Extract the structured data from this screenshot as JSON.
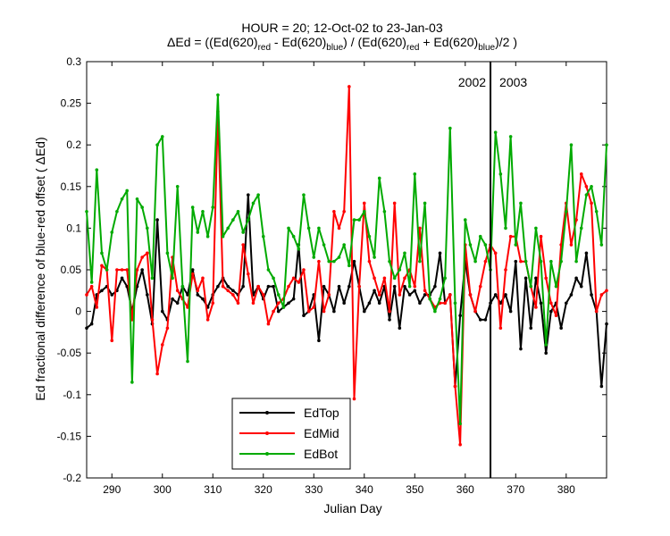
{
  "figure": {
    "title_line1": "HOUR = 20; 12-Oct-02 to 23-Jan-03",
    "title_line2": {
      "p1": "ΔEd = ((Ed(620)",
      "s1": "red",
      "p2": " - Ed(620)",
      "s2": "blue",
      "p3": ") / (Ed(620)",
      "s3": "red",
      "p4": " + Ed(620)",
      "s4": "blue",
      "p5": ")/2  )"
    },
    "xlabel": "Julian Day",
    "ylabel": "Ed fractional difference of blue-red offset ( ΔEd)",
    "annotation_2002": "2002",
    "annotation_2003": "2003"
  },
  "chart_data": {
    "type": "line",
    "xlim": [
      285,
      388
    ],
    "ylim": [
      -0.2,
      0.3
    ],
    "x_ticks": [
      290,
      300,
      310,
      320,
      330,
      340,
      350,
      360,
      370,
      380
    ],
    "y_ticks": [
      -0.2,
      -0.15,
      -0.1,
      -0.05,
      0,
      0.05,
      0.1,
      0.15,
      0.2,
      0.25,
      0.3
    ],
    "y_tick_labels": [
      "-0.2",
      "-0.15",
      "-0.1",
      "-0.05",
      "0",
      "0.05",
      "0.1",
      "0.15",
      "0.2",
      "0.25",
      "0.3"
    ],
    "vertical_line_x": 365,
    "grid": false,
    "legend_position": "bottom-center",
    "series": [
      {
        "name": "EdTop",
        "color": "#000000",
        "points": [
          [
            285,
            -0.02
          ],
          [
            286,
            -0.015
          ],
          [
            287,
            0.02
          ],
          [
            288,
            0.025
          ],
          [
            289,
            0.03
          ],
          [
            290,
            0.02
          ],
          [
            291,
            0.025
          ],
          [
            292,
            0.04
          ],
          [
            293,
            0.03
          ],
          [
            294,
            0.0
          ],
          [
            295,
            0.03
          ],
          [
            296,
            0.05
          ],
          [
            297,
            0.02
          ],
          [
            298,
            -0.015
          ],
          [
            299,
            0.11
          ],
          [
            300,
            0.0
          ],
          [
            301,
            -0.01
          ],
          [
            302,
            0.015
          ],
          [
            303,
            0.01
          ],
          [
            304,
            0.03
          ],
          [
            305,
            0.02
          ],
          [
            306,
            0.05
          ],
          [
            307,
            0.02
          ],
          [
            308,
            0.015
          ],
          [
            309,
            0.005
          ],
          [
            310,
            0.02
          ],
          [
            311,
            0.03
          ],
          [
            312,
            0.04
          ],
          [
            313,
            0.03
          ],
          [
            314,
            0.025
          ],
          [
            315,
            0.02
          ],
          [
            316,
            0.03
          ],
          [
            317,
            0.14
          ],
          [
            318,
            0.02
          ],
          [
            319,
            0.03
          ],
          [
            320,
            0.015
          ],
          [
            321,
            0.03
          ],
          [
            322,
            0.03
          ],
          [
            323,
            0.0
          ],
          [
            324,
            0.005
          ],
          [
            325,
            0.01
          ],
          [
            326,
            0.015
          ],
          [
            327,
            0.08
          ],
          [
            328,
            -0.005
          ],
          [
            329,
            0.0
          ],
          [
            330,
            0.02
          ],
          [
            331,
            -0.035
          ],
          [
            332,
            0.03
          ],
          [
            333,
            0.02
          ],
          [
            334,
            0.0
          ],
          [
            335,
            0.03
          ],
          [
            336,
            0.01
          ],
          [
            337,
            0.03
          ],
          [
            338,
            0.06
          ],
          [
            339,
            0.03
          ],
          [
            340,
            0.0
          ],
          [
            341,
            0.01
          ],
          [
            342,
            0.025
          ],
          [
            343,
            0.01
          ],
          [
            344,
            0.03
          ],
          [
            345,
            -0.01
          ],
          [
            346,
            0.03
          ],
          [
            347,
            -0.02
          ],
          [
            348,
            0.03
          ],
          [
            349,
            0.02
          ],
          [
            350,
            0.025
          ],
          [
            351,
            0.01
          ],
          [
            352,
            0.02
          ],
          [
            353,
            0.02
          ],
          [
            354,
            0.03
          ],
          [
            355,
            0.07
          ],
          [
            356,
            0.01
          ],
          [
            357,
            0.02
          ],
          [
            358,
            -0.09
          ],
          [
            359,
            -0.005
          ],
          [
            360,
            0.06
          ],
          [
            361,
            0.02
          ],
          [
            362,
            0.0
          ],
          [
            363,
            -0.01
          ],
          [
            364,
            -0.01
          ],
          [
            365,
            0.01
          ],
          [
            366,
            0.02
          ],
          [
            367,
            0.01
          ],
          [
            368,
            0.02
          ],
          [
            369,
            0.0
          ],
          [
            370,
            0.06
          ],
          [
            371,
            -0.045
          ],
          [
            372,
            0.04
          ],
          [
            373,
            -0.02
          ],
          [
            374,
            0.04
          ],
          [
            375,
            0.01
          ],
          [
            376,
            -0.05
          ],
          [
            377,
            0.0
          ],
          [
            378,
            0.01
          ],
          [
            379,
            -0.02
          ],
          [
            380,
            0.01
          ],
          [
            381,
            0.02
          ],
          [
            382,
            0.04
          ],
          [
            383,
            0.03
          ],
          [
            384,
            0.07
          ],
          [
            385,
            0.02
          ],
          [
            386,
            0.0
          ],
          [
            387,
            -0.09
          ],
          [
            388,
            -0.015
          ]
        ]
      },
      {
        "name": "EdMid",
        "color": "#ff0000",
        "points": [
          [
            285,
            0.02
          ],
          [
            286,
            0.03
          ],
          [
            287,
            0.005
          ],
          [
            288,
            0.055
          ],
          [
            289,
            0.05
          ],
          [
            290,
            -0.035
          ],
          [
            291,
            0.05
          ],
          [
            292,
            0.05
          ],
          [
            293,
            0.05
          ],
          [
            294,
            -0.01
          ],
          [
            295,
            0.05
          ],
          [
            296,
            0.065
          ],
          [
            297,
            0.07
          ],
          [
            298,
            -0.01
          ],
          [
            299,
            -0.075
          ],
          [
            300,
            -0.04
          ],
          [
            301,
            -0.02
          ],
          [
            302,
            0.065
          ],
          [
            303,
            0.025
          ],
          [
            304,
            0.015
          ],
          [
            305,
            0.005
          ],
          [
            306,
            0.045
          ],
          [
            307,
            0.025
          ],
          [
            308,
            0.04
          ],
          [
            309,
            -0.01
          ],
          [
            310,
            0.01
          ],
          [
            311,
            0.24
          ],
          [
            312,
            0.03
          ],
          [
            313,
            0.025
          ],
          [
            314,
            0.02
          ],
          [
            315,
            0.01
          ],
          [
            316,
            0.08
          ],
          [
            317,
            0.045
          ],
          [
            318,
            0.01
          ],
          [
            319,
            0.03
          ],
          [
            320,
            0.02
          ],
          [
            321,
            -0.015
          ],
          [
            322,
            0.0
          ],
          [
            323,
            0.01
          ],
          [
            324,
            0.015
          ],
          [
            325,
            0.03
          ],
          [
            326,
            0.04
          ],
          [
            327,
            0.035
          ],
          [
            328,
            0.05
          ],
          [
            329,
            0.0
          ],
          [
            330,
            0.005
          ],
          [
            331,
            0.06
          ],
          [
            332,
            0.0
          ],
          [
            333,
            0.02
          ],
          [
            334,
            0.12
          ],
          [
            335,
            0.1
          ],
          [
            336,
            0.12
          ],
          [
            337,
            0.27
          ],
          [
            338,
            -0.105
          ],
          [
            339,
            0.03
          ],
          [
            340,
            0.13
          ],
          [
            341,
            0.06
          ],
          [
            342,
            0.04
          ],
          [
            343,
            0.02
          ],
          [
            344,
            0.04
          ],
          [
            345,
            0.0
          ],
          [
            346,
            0.13
          ],
          [
            347,
            0.02
          ],
          [
            348,
            0.04
          ],
          [
            349,
            0.05
          ],
          [
            350,
            0.03
          ],
          [
            351,
            0.1
          ],
          [
            352,
            0.025
          ],
          [
            353,
            0.015
          ],
          [
            354,
            0.005
          ],
          [
            355,
            0.01
          ],
          [
            356,
            0.01
          ],
          [
            357,
            0.02
          ],
          [
            358,
            -0.09
          ],
          [
            359,
            -0.16
          ],
          [
            360,
            0.08
          ],
          [
            361,
            0.02
          ],
          [
            362,
            0.0
          ],
          [
            363,
            0.03
          ],
          [
            364,
            0.06
          ],
          [
            365,
            0.08
          ],
          [
            366,
            0.07
          ],
          [
            367,
            -0.02
          ],
          [
            368,
            0.05
          ],
          [
            369,
            0.09
          ],
          [
            370,
            0.09
          ],
          [
            371,
            0.06
          ],
          [
            372,
            0.06
          ],
          [
            373,
            0.03
          ],
          [
            374,
            0.005
          ],
          [
            375,
            0.09
          ],
          [
            376,
            0.04
          ],
          [
            377,
            0.01
          ],
          [
            378,
            -0.005
          ],
          [
            379,
            0.08
          ],
          [
            380,
            0.13
          ],
          [
            381,
            0.08
          ],
          [
            382,
            0.11
          ],
          [
            383,
            0.165
          ],
          [
            384,
            0.15
          ],
          [
            385,
            0.13
          ],
          [
            386,
            0.0
          ],
          [
            387,
            0.02
          ],
          [
            388,
            0.025
          ]
        ]
      },
      {
        "name": "EdBot",
        "color": "#00aa00",
        "points": [
          [
            285,
            0.12
          ],
          [
            286,
            0.035
          ],
          [
            287,
            0.17
          ],
          [
            288,
            0.07
          ],
          [
            289,
            0.05
          ],
          [
            290,
            0.095
          ],
          [
            291,
            0.12
          ],
          [
            292,
            0.135
          ],
          [
            293,
            0.145
          ],
          [
            294,
            -0.085
          ],
          [
            295,
            0.135
          ],
          [
            296,
            0.125
          ],
          [
            297,
            0.1
          ],
          [
            298,
            0.04
          ],
          [
            299,
            0.2
          ],
          [
            300,
            0.21
          ],
          [
            301,
            0.07
          ],
          [
            302,
            0.04
          ],
          [
            303,
            0.15
          ],
          [
            304,
            0.03
          ],
          [
            305,
            -0.06
          ],
          [
            306,
            0.125
          ],
          [
            307,
            0.095
          ],
          [
            308,
            0.12
          ],
          [
            309,
            0.09
          ],
          [
            310,
            0.125
          ],
          [
            311,
            0.26
          ],
          [
            312,
            0.09
          ],
          [
            313,
            0.1
          ],
          [
            314,
            0.11
          ],
          [
            315,
            0.12
          ],
          [
            316,
            0.095
          ],
          [
            317,
            0.11
          ],
          [
            318,
            0.13
          ],
          [
            319,
            0.14
          ],
          [
            320,
            0.09
          ],
          [
            321,
            0.05
          ],
          [
            322,
            0.04
          ],
          [
            323,
            0.02
          ],
          [
            324,
            0.005
          ],
          [
            325,
            0.1
          ],
          [
            326,
            0.09
          ],
          [
            327,
            0.075
          ],
          [
            328,
            0.14
          ],
          [
            329,
            0.1
          ],
          [
            330,
            0.065
          ],
          [
            331,
            0.1
          ],
          [
            332,
            0.08
          ],
          [
            333,
            0.06
          ],
          [
            334,
            0.06
          ],
          [
            335,
            0.065
          ],
          [
            336,
            0.08
          ],
          [
            337,
            0.055
          ],
          [
            338,
            0.11
          ],
          [
            339,
            0.11
          ],
          [
            340,
            0.12
          ],
          [
            341,
            0.09
          ],
          [
            342,
            0.065
          ],
          [
            343,
            0.16
          ],
          [
            344,
            0.12
          ],
          [
            345,
            0.06
          ],
          [
            346,
            0.04
          ],
          [
            347,
            0.05
          ],
          [
            348,
            0.07
          ],
          [
            349,
            0.03
          ],
          [
            350,
            0.165
          ],
          [
            351,
            0.06
          ],
          [
            352,
            0.13
          ],
          [
            353,
            0.015
          ],
          [
            354,
            0.0
          ],
          [
            355,
            0.015
          ],
          [
            356,
            0.04
          ],
          [
            357,
            0.22
          ],
          [
            358,
            0.01
          ],
          [
            359,
            -0.135
          ],
          [
            360,
            0.11
          ],
          [
            361,
            0.08
          ],
          [
            362,
            0.06
          ],
          [
            363,
            0.09
          ],
          [
            364,
            0.08
          ],
          [
            365,
            0.05
          ],
          [
            366,
            0.215
          ],
          [
            367,
            0.165
          ],
          [
            368,
            0.1
          ],
          [
            369,
            0.21
          ],
          [
            370,
            0.08
          ],
          [
            371,
            0.13
          ],
          [
            372,
            0.06
          ],
          [
            373,
            0.03
          ],
          [
            374,
            0.1
          ],
          [
            375,
            0.06
          ],
          [
            376,
            -0.04
          ],
          [
            377,
            0.06
          ],
          [
            378,
            0.03
          ],
          [
            379,
            0.06
          ],
          [
            380,
            0.12
          ],
          [
            381,
            0.2
          ],
          [
            382,
            0.06
          ],
          [
            383,
            0.1
          ],
          [
            384,
            0.14
          ],
          [
            385,
            0.15
          ],
          [
            386,
            0.12
          ],
          [
            387,
            0.08
          ],
          [
            388,
            0.2
          ]
        ]
      }
    ]
  }
}
